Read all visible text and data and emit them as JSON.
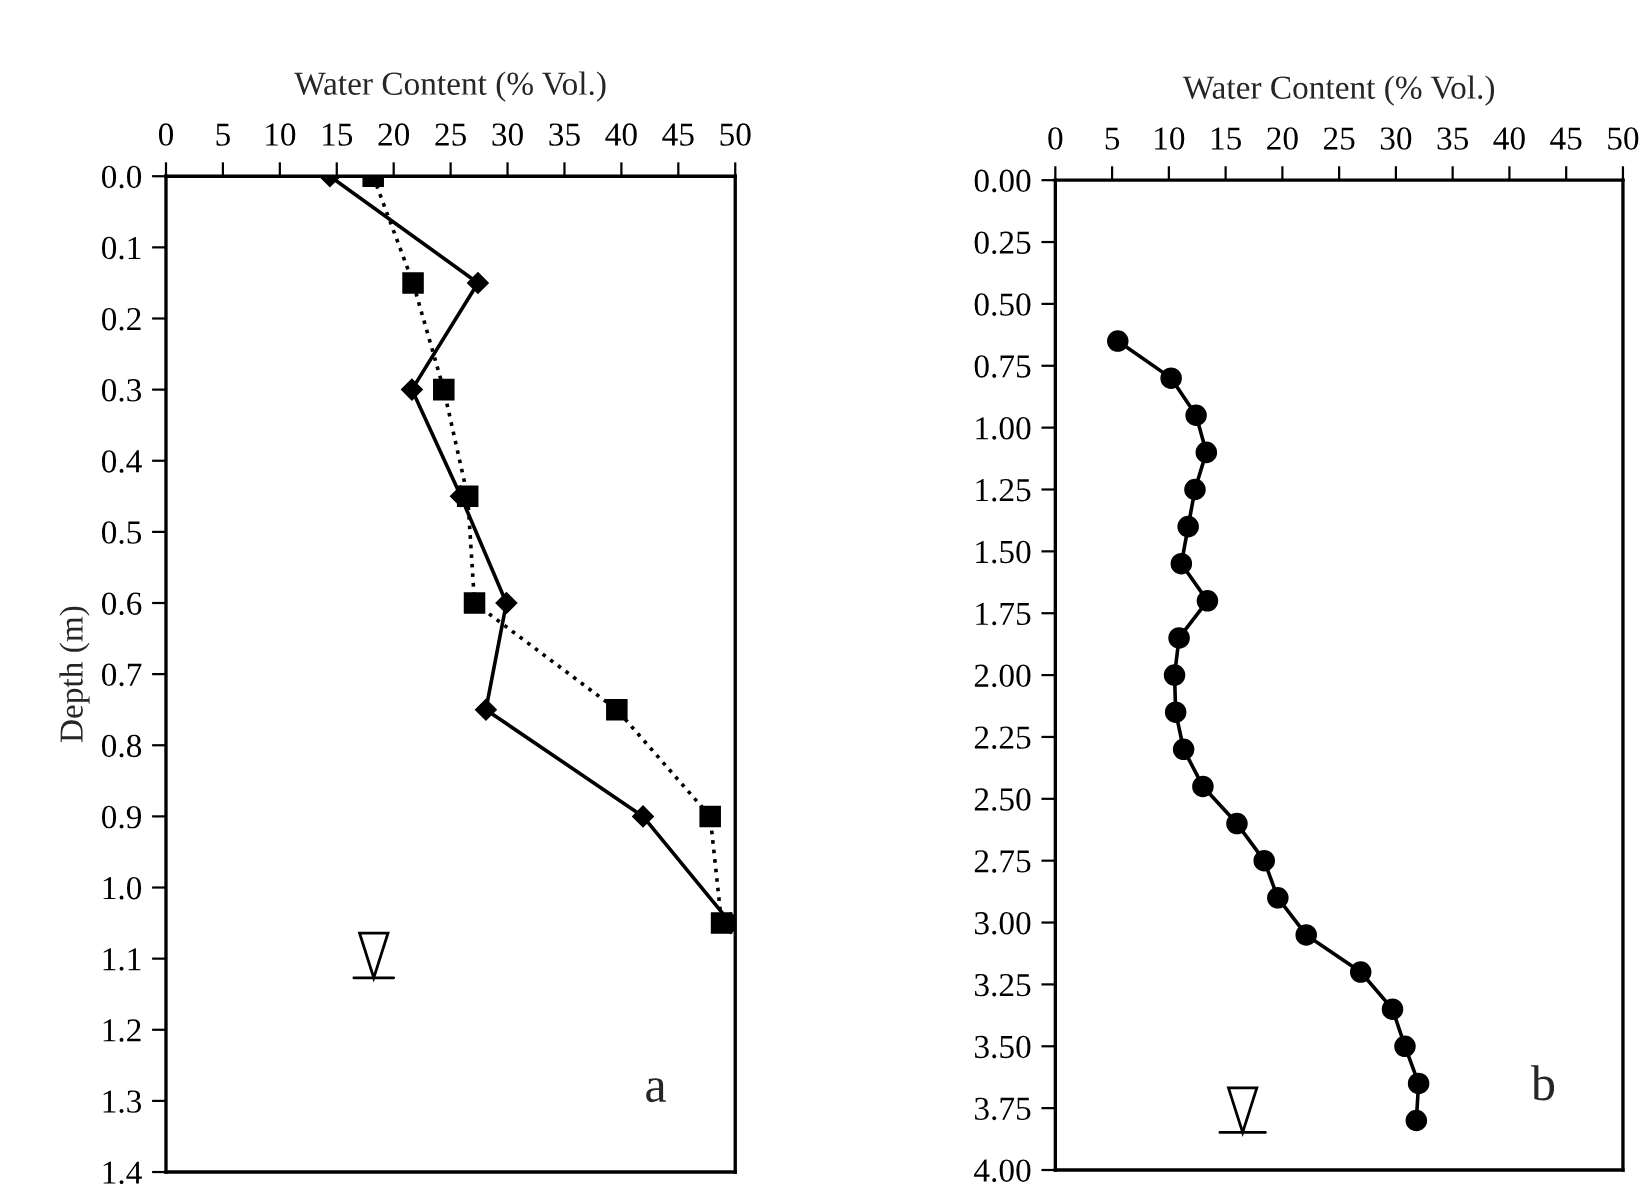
{
  "chart_data": [
    {
      "type": "line",
      "xlabel": "Water Content (% Vol.)",
      "ylabel": "Depth (m)",
      "xlim": [
        0,
        50
      ],
      "xticks": [
        0,
        5,
        10,
        15,
        20,
        25,
        30,
        35,
        40,
        45,
        50
      ],
      "ylim": [
        1.4,
        0
      ],
      "yticks": [
        {
          "value": 0,
          "label": "0.0"
        },
        {
          "value": 0.1,
          "label": "0.1"
        },
        {
          "value": 0.2,
          "label": "0.2"
        },
        {
          "value": 0.3,
          "label": "0.3"
        },
        {
          "value": 0.4,
          "label": "0.4"
        },
        {
          "value": 0.5,
          "label": "0.5"
        },
        {
          "value": 0.6,
          "label": "0.6"
        },
        {
          "value": 0.7,
          "label": "0.7"
        },
        {
          "value": 0.8,
          "label": "0.8"
        },
        {
          "value": 0.9,
          "label": "0.9"
        },
        {
          "value": 1.0,
          "label": "1.0"
        },
        {
          "value": 1.1,
          "label": "1.1"
        },
        {
          "value": 1.2,
          "label": "1.2"
        },
        {
          "value": 1.3,
          "label": "1.3"
        },
        {
          "value": 1.4,
          "label": "1.4"
        }
      ],
      "annotations": [
        "a"
      ],
      "series": [
        {
          "color": "#000000",
          "marker": "diamond",
          "line_style": "solid",
          "x": [
            14.4,
            27.4,
            21.6,
            25.9,
            29.9,
            28.1,
            41.9,
            49.6
          ],
          "values": [
            0,
            0.15,
            0.3,
            0.45,
            0.6,
            0.75,
            0.9,
            1.05
          ]
        },
        {
          "color": "#000000",
          "marker": "square",
          "line_style": "dotted",
          "x": [
            18.2,
            21.7,
            24.4,
            26.5,
            27.1,
            39.6,
            47.8,
            48.8
          ],
          "values": [
            0,
            0.15,
            0.3,
            0.45,
            0.6,
            0.75,
            0.9,
            1.05
          ]
        }
      ]
    },
    {
      "type": "line",
      "xlabel": "Water Content (% Vol.)",
      "xlim": [
        0,
        50
      ],
      "xticks": [
        0,
        5,
        10,
        15,
        20,
        25,
        30,
        35,
        40,
        45,
        50
      ],
      "ylim": [
        4,
        0
      ],
      "yticks": [
        {
          "value": 0,
          "label": "0.00"
        },
        {
          "value": 0.25,
          "label": "0.25"
        },
        {
          "value": 0.5,
          "label": "0.50"
        },
        {
          "value": 0.75,
          "label": "0.75"
        },
        {
          "value": 1.0,
          "label": "1.00"
        },
        {
          "value": 1.25,
          "label": "1.25"
        },
        {
          "value": 1.5,
          "label": "1.50"
        },
        {
          "value": 1.75,
          "label": "1.75"
        },
        {
          "value": 2.0,
          "label": "2.00"
        },
        {
          "value": 2.25,
          "label": "2.25"
        },
        {
          "value": 2.5,
          "label": "2.50"
        },
        {
          "value": 2.75,
          "label": "2.75"
        },
        {
          "value": 3.0,
          "label": "3.00"
        },
        {
          "value": 3.25,
          "label": "3.25"
        },
        {
          "value": 3.5,
          "label": "3.50"
        },
        {
          "value": 3.75,
          "label": "3.75"
        },
        {
          "value": 4.0,
          "label": "4.00"
        }
      ],
      "annotations": [
        "b"
      ],
      "series": [
        {
          "color": "#000000",
          "marker": "circle",
          "line_style": "solid",
          "x": [
            5.5,
            10.2,
            12.4,
            13.3,
            12.3,
            11.7,
            11.1,
            13.4,
            10.9,
            10.5,
            10.6,
            11.3,
            13.0,
            16.0,
            18.4,
            19.6,
            22.1,
            26.9,
            29.7,
            30.8,
            32.0,
            31.8
          ],
          "values": [
            0.65,
            0.8,
            0.95,
            1.1,
            1.25,
            1.4,
            1.55,
            1.7,
            1.85,
            2.0,
            2.15,
            2.3,
            2.45,
            2.6,
            2.75,
            2.9,
            3.05,
            3.2,
            3.35,
            3.5,
            3.65,
            3.8
          ]
        }
      ]
    }
  ]
}
